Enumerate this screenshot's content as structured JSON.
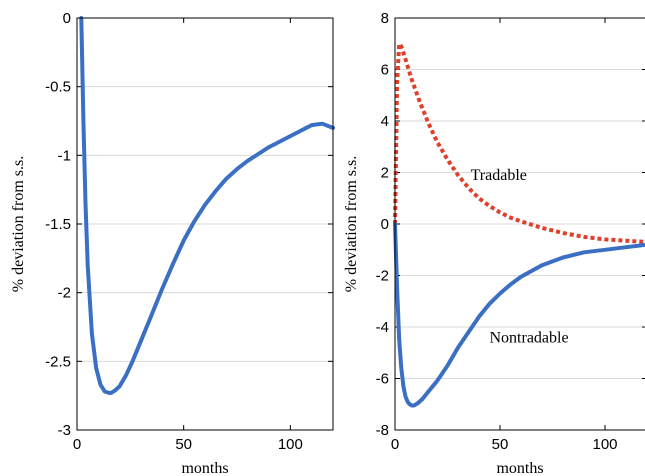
{
  "chart_data": [
    {
      "type": "line",
      "xlabel": "months",
      "ylabel": "% deviation from s.s.",
      "xlim": [
        0,
        120
      ],
      "ylim": [
        -3,
        0
      ],
      "xticks": [
        "0",
        "50",
        "100"
      ],
      "yticks": [
        "0",
        "-0.5",
        "-1",
        "-1.5",
        "-2",
        "-2.5",
        "-3"
      ],
      "grid": "horizontal",
      "series": [
        {
          "color": "#3a6fc4",
          "style": "solid",
          "x": [
            2,
            3,
            4,
            5,
            7,
            9,
            11,
            13,
            15,
            16,
            18,
            20,
            23,
            26,
            30,
            35,
            40,
            45,
            50,
            55,
            60,
            65,
            70,
            75,
            80,
            85,
            90,
            95,
            100,
            105,
            110,
            115,
            120
          ],
          "y": [
            0,
            -0.75,
            -1.35,
            -1.8,
            -2.3,
            -2.55,
            -2.67,
            -2.72,
            -2.73,
            -2.73,
            -2.71,
            -2.68,
            -2.6,
            -2.5,
            -2.35,
            -2.16,
            -1.97,
            -1.79,
            -1.62,
            -1.48,
            -1.36,
            -1.26,
            -1.17,
            -1.1,
            -1.04,
            -0.99,
            -0.94,
            -0.9,
            -0.86,
            -0.82,
            -0.78,
            -0.77,
            -0.8
          ]
        }
      ]
    },
    {
      "type": "line",
      "xlabel": "months",
      "ylabel": "% deviation from s.s.",
      "xlim": [
        0,
        120
      ],
      "ylim": [
        -8,
        8
      ],
      "xticks": [
        "0",
        "50",
        "100"
      ],
      "yticks": [
        "8",
        "6",
        "4",
        "2",
        "0",
        "-2",
        "-4",
        "-6",
        "-8"
      ],
      "grid": "horizontal",
      "annotations": [
        {
          "text": "Tradable",
          "x": 36,
          "y": 1.7
        },
        {
          "text": "Nontradable",
          "x": 45,
          "y": -4.6
        }
      ],
      "series": [
        {
          "name": "Tradable",
          "color": "#e0402a",
          "style": "dotted",
          "x": [
            0,
            1,
            2,
            3,
            5,
            8,
            12,
            16,
            20,
            25,
            30,
            35,
            40,
            45,
            50,
            55,
            60,
            70,
            80,
            90,
            100,
            110,
            120
          ],
          "y": [
            0,
            5.5,
            7.0,
            6.9,
            6.4,
            5.6,
            4.7,
            3.9,
            3.2,
            2.5,
            1.9,
            1.4,
            1.0,
            0.7,
            0.45,
            0.25,
            0.1,
            -0.15,
            -0.35,
            -0.5,
            -0.6,
            -0.65,
            -0.7
          ]
        },
        {
          "name": "Nontradable",
          "color": "#3a6fc4",
          "style": "solid",
          "x": [
            0,
            1,
            2,
            3,
            4,
            5,
            6,
            7,
            8,
            9,
            10,
            11,
            13,
            15,
            18,
            20,
            25,
            30,
            35,
            40,
            45,
            50,
            55,
            60,
            70,
            80,
            90,
            100,
            110,
            120
          ],
          "y": [
            0,
            -2.5,
            -4.5,
            -5.6,
            -6.3,
            -6.7,
            -6.9,
            -7.0,
            -7.05,
            -7.05,
            -7.0,
            -6.95,
            -6.8,
            -6.6,
            -6.3,
            -6.1,
            -5.5,
            -4.8,
            -4.2,
            -3.6,
            -3.1,
            -2.7,
            -2.35,
            -2.05,
            -1.6,
            -1.3,
            -1.1,
            -1.0,
            -0.9,
            -0.8
          ]
        }
      ]
    }
  ]
}
